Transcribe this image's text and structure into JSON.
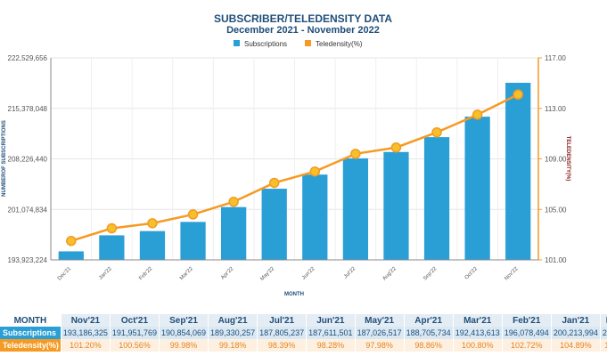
{
  "chart_data": {
    "type": "bar+line",
    "title": "SUBSCRIBER/TELEDENSITY DATA",
    "subtitle": "December 2021 - November 2022",
    "xlabel": "MONTH",
    "ylabel_left": "NUMBEROF SUBSCRIPTIONS",
    "ylabel_right": "TELEDENSITY(%)",
    "legend_position": "top-center",
    "categories": [
      "Dec'21",
      "Jan'22",
      "Feb'22",
      "Mar'22",
      "Apr'22",
      "May'22",
      "Jun'22",
      "Jul'22",
      "Aug'22",
      "Sep'22",
      "Oct'22",
      "Nov'22"
    ],
    "yticks_left": [
      "193,923,224",
      "201,074,834",
      "208,226,440",
      "215,378,048",
      "222,529,656"
    ],
    "yticks_right": [
      "101.00",
      "105.00",
      "109.00",
      "113.00",
      "117.00"
    ],
    "ylim_left": [
      193923224,
      222529656
    ],
    "ylim_right": [
      101,
      117
    ],
    "series": [
      {
        "name": "Subscriptions",
        "type": "bar",
        "color": "#2a9fd6",
        "values": [
          195128509,
          197400000,
          198000000,
          199300000,
          201400000,
          204000000,
          206000000,
          208300000,
          209200000,
          211300000,
          214200000,
          219000000
        ]
      },
      {
        "name": "Teledensity(%)",
        "type": "line",
        "color": "#f59a23",
        "marker_color": "#f5c02a",
        "values": [
          102.5,
          103.5,
          103.9,
          104.6,
          105.6,
          107.1,
          108.0,
          109.4,
          109.9,
          111.1,
          112.5,
          114.1
        ]
      }
    ],
    "grid": true
  },
  "table": {
    "header_label": "MONTH",
    "columns": [
      "Nov'21",
      "Oct'21",
      "Sep'21",
      "Aug'21",
      "Jul'21",
      "Jun'21",
      "May'21",
      "Apr'21",
      "Mar'21",
      "Feb'21",
      "Jan'21",
      "D"
    ],
    "rows": [
      {
        "label": "Subscriptions",
        "values": [
          "193,186,325",
          "191,951,769",
          "190,854,069",
          "189,330,257",
          "187,805,237",
          "187,611,501",
          "187,026,517",
          "188,705,734",
          "192,413,613",
          "196,078,494",
          "200,213,994",
          "204"
        ]
      },
      {
        "label": "Teledensity(%)",
        "values": [
          "101.20%",
          "100.56%",
          "99.98%",
          "99.18%",
          "98.39%",
          "98.28%",
          "97.98%",
          "98.86%",
          "100.80%",
          "102.72%",
          "104.89%",
          "10"
        ]
      }
    ]
  }
}
